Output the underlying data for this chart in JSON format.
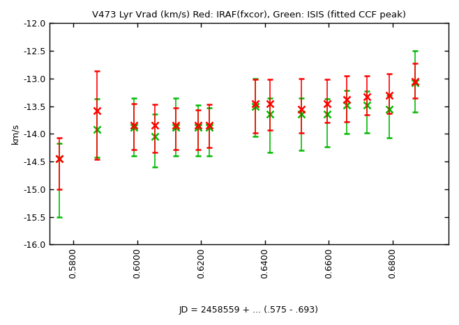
{
  "title": "V473 Lyr Vrad (km/s) Red: IRAF(fxcor), Green: ISIS (fitted CCF peak)",
  "xlabel": "JD = 2458559 + ... (.575 - .693)",
  "ylabel": "km/s",
  "xlim": [
    0.5725,
    0.6975
  ],
  "ylim": [
    -16,
    -12
  ],
  "xticks": [
    0.58,
    0.6,
    0.62,
    0.64,
    0.66,
    0.68
  ],
  "yticks": [
    -16,
    -15.5,
    -15,
    -14.5,
    -14,
    -13.5,
    -13,
    -12.5,
    -12
  ],
  "red_x": [
    0.5755,
    0.5875,
    0.599,
    0.6055,
    0.612,
    0.619,
    0.6225,
    0.637,
    0.6415,
    0.6515,
    0.6595,
    0.6655,
    0.672,
    0.679,
    0.687
  ],
  "red_y": [
    -14.45,
    -13.58,
    -13.85,
    -13.85,
    -13.85,
    -13.85,
    -13.85,
    -13.46,
    -13.46,
    -13.55,
    -13.45,
    -13.38,
    -13.33,
    -13.3,
    -13.05
  ],
  "red_yerr_lo": [
    0.55,
    0.88,
    0.44,
    0.48,
    0.44,
    0.44,
    0.4,
    0.52,
    0.47,
    0.44,
    0.35,
    0.4,
    0.33,
    0.33,
    0.3
  ],
  "red_yerr_hi": [
    0.38,
    0.72,
    0.4,
    0.38,
    0.32,
    0.28,
    0.38,
    0.44,
    0.45,
    0.55,
    0.43,
    0.43,
    0.38,
    0.38,
    0.33
  ],
  "green_x": [
    0.5755,
    0.5875,
    0.599,
    0.6055,
    0.612,
    0.619,
    0.6225,
    0.637,
    0.6415,
    0.6515,
    0.6595,
    0.6655,
    0.672,
    0.679,
    0.687
  ],
  "green_y": [
    -14.45,
    -13.92,
    -13.88,
    -14.05,
    -13.88,
    -13.88,
    -13.88,
    -13.5,
    -13.65,
    -13.65,
    -13.65,
    -13.48,
    -13.48,
    -13.55,
    -13.08
  ],
  "green_yerr_lo": [
    1.05,
    0.5,
    0.52,
    0.55,
    0.52,
    0.52,
    0.52,
    0.55,
    0.68,
    0.65,
    0.58,
    0.52,
    0.5,
    0.52,
    0.52
  ],
  "green_yerr_hi": [
    0.28,
    0.55,
    0.52,
    0.4,
    0.52,
    0.4,
    0.35,
    0.5,
    0.3,
    0.3,
    0.28,
    0.26,
    0.25,
    0.25,
    0.58
  ],
  "red_color": "#ff0000",
  "green_color": "#00bb00",
  "black_color": "#404040",
  "bg_color": "#ffffff"
}
